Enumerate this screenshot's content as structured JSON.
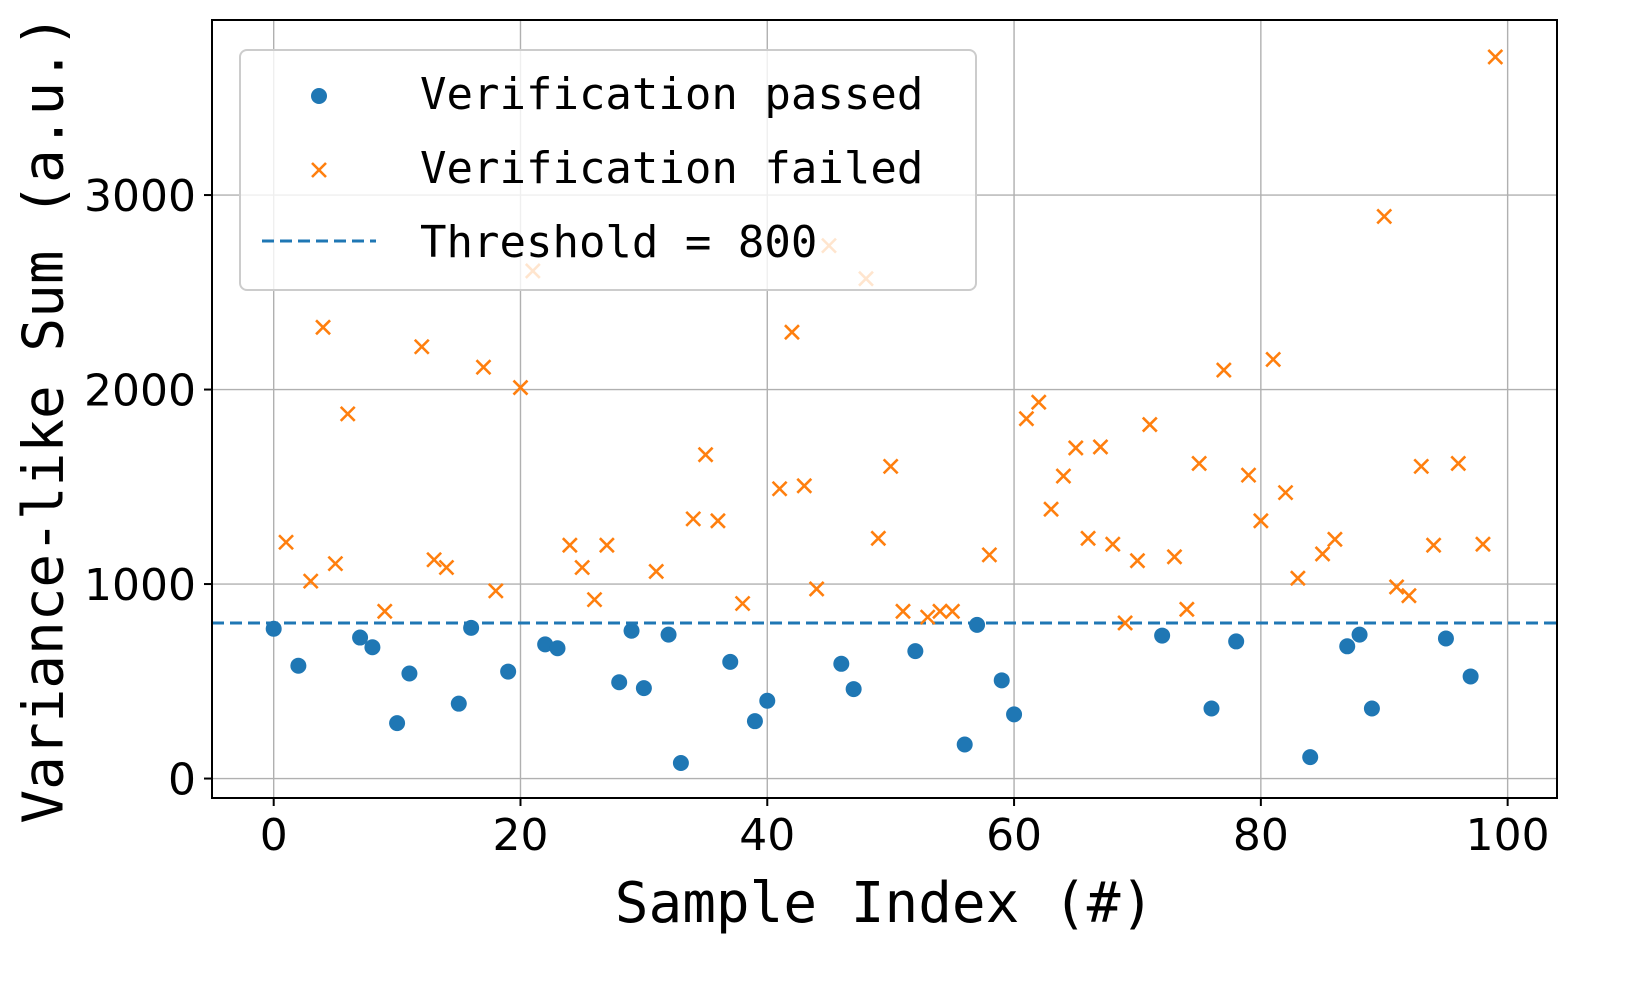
{
  "chart_data": {
    "type": "scatter",
    "title": "",
    "xlabel": "Sample Index (#)",
    "ylabel": "Variance-like Sum (a.u.)",
    "xlim": [
      -5,
      104
    ],
    "ylim": [
      -100,
      3900
    ],
    "xticks": [
      0,
      20,
      40,
      60,
      80,
      100
    ],
    "yticks": [
      0,
      1000,
      2000,
      3000
    ],
    "grid": true,
    "legend_position": "top-left",
    "colors": {
      "passed": "#1f77b4",
      "failed": "#ff7f0e",
      "threshold": "#1f77b4"
    },
    "threshold": {
      "label": "Threshold = 800",
      "value": 800,
      "style": "dashed"
    },
    "series": [
      {
        "name": "Verification passed",
        "marker": "circle",
        "x": [
          0,
          2,
          7,
          8,
          10,
          11,
          15,
          16,
          19,
          22,
          23,
          28,
          29,
          30,
          32,
          33,
          37,
          39,
          40,
          46,
          47,
          52,
          56,
          57,
          59,
          60,
          72,
          76,
          78,
          84,
          87,
          88,
          89,
          95,
          97
        ],
        "y": [
          770,
          580,
          725,
          675,
          285,
          540,
          385,
          775,
          550,
          690,
          670,
          495,
          760,
          465,
          740,
          80,
          600,
          295,
          400,
          590,
          460,
          655,
          175,
          790,
          505,
          330,
          735,
          360,
          705,
          110,
          680,
          740,
          360,
          720,
          525
        ]
      },
      {
        "name": "Verification failed",
        "marker": "x",
        "x": [
          1,
          3,
          4,
          5,
          6,
          9,
          12,
          13,
          14,
          17,
          18,
          20,
          21,
          24,
          25,
          26,
          27,
          31,
          34,
          35,
          36,
          38,
          41,
          42,
          43,
          44,
          45,
          48,
          49,
          50,
          51,
          53,
          54,
          55,
          58,
          61,
          62,
          63,
          64,
          65,
          66,
          67,
          68,
          69,
          70,
          71,
          73,
          74,
          75,
          77,
          79,
          80,
          81,
          82,
          83,
          85,
          86,
          90,
          91,
          92,
          93,
          94,
          96,
          98,
          99
        ],
        "y": [
          1215,
          1015,
          2320,
          1105,
          1875,
          860,
          2220,
          1125,
          1085,
          2115,
          965,
          2010,
          2610,
          1200,
          1085,
          920,
          1200,
          1065,
          1335,
          1665,
          1325,
          900,
          1490,
          2295,
          1505,
          975,
          2740,
          2570,
          1235,
          1605,
          860,
          830,
          860,
          860,
          1150,
          1850,
          1935,
          1385,
          1555,
          1700,
          1235,
          1705,
          1205,
          800,
          1120,
          1820,
          1140,
          870,
          1620,
          2100,
          1560,
          1325,
          2155,
          1470,
          1030,
          1155,
          1230,
          2890,
          985,
          940,
          1605,
          1200,
          1620,
          1205,
          3710
        ]
      }
    ]
  }
}
